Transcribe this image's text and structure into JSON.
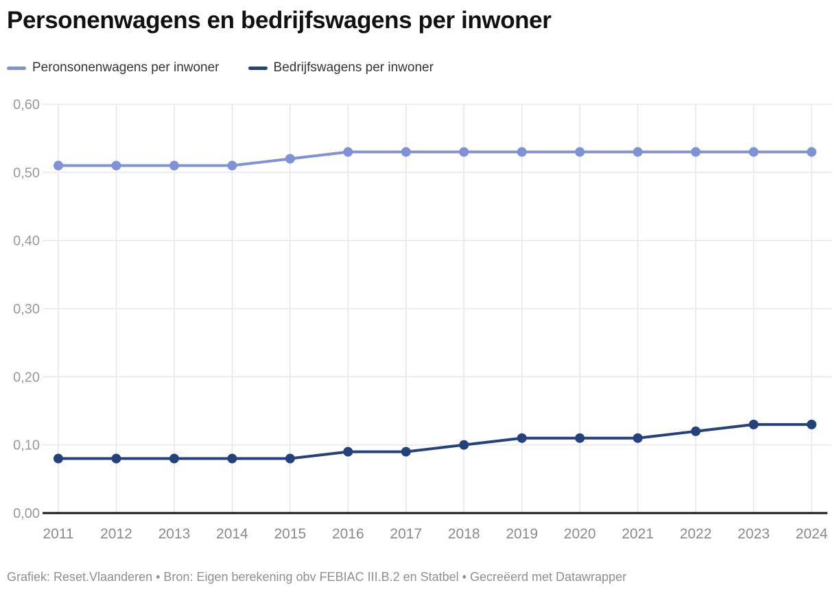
{
  "header": {
    "title": "Personenwagens en bedrijfswagens per inwoner"
  },
  "legend": {
    "items": [
      {
        "label": "Peronsonenwagens per inwoner",
        "color": "#7f92d6"
      },
      {
        "label": "Bedrijfswagens per inwoner",
        "color": "#25417c"
      }
    ]
  },
  "chart_data": {
    "type": "line",
    "title": "Personenwagens en bedrijfswagens per inwoner",
    "x": [
      2011,
      2012,
      2013,
      2014,
      2015,
      2016,
      2017,
      2018,
      2019,
      2020,
      2021,
      2022,
      2023,
      2024
    ],
    "series": [
      {
        "name": "Peronsonenwagens per inwoner",
        "color": "#7f92d6",
        "values": [
          0.51,
          0.51,
          0.51,
          0.51,
          0.52,
          0.53,
          0.53,
          0.53,
          0.53,
          0.53,
          0.53,
          0.53,
          0.53,
          0.53
        ]
      },
      {
        "name": "Bedrijfswagens per inwoner",
        "color": "#25417c",
        "values": [
          0.08,
          0.08,
          0.08,
          0.08,
          0.08,
          0.09,
          0.09,
          0.1,
          0.11,
          0.11,
          0.11,
          0.12,
          0.13,
          0.13
        ]
      }
    ],
    "xlabel": "",
    "ylabel": "",
    "ylim": [
      0,
      0.6
    ],
    "yticks": [
      0,
      0.1,
      0.2,
      0.3,
      0.4,
      0.5,
      0.6
    ],
    "ytick_labels": [
      "0,00",
      "0,10",
      "0,20",
      "0,30",
      "0,40",
      "0,50",
      "0,60"
    ],
    "decimal_separator": ",",
    "grid": true,
    "legend_position": "top-left"
  },
  "footer": {
    "text": "Grafiek: Reset.Vlaanderen • Bron: Eigen berekening obv FEBIAC III.B.2 en Statbel • Gecreëerd met Datawrapper"
  },
  "colors": {
    "background": "#ffffff",
    "grid": "#e6e6e6",
    "axis": "#161616",
    "y_tick_text": "#999999",
    "x_tick_text": "#8a8a8a",
    "title_text": "#111111",
    "legend_text": "#333333",
    "footer_text": "#8f8f8f"
  }
}
